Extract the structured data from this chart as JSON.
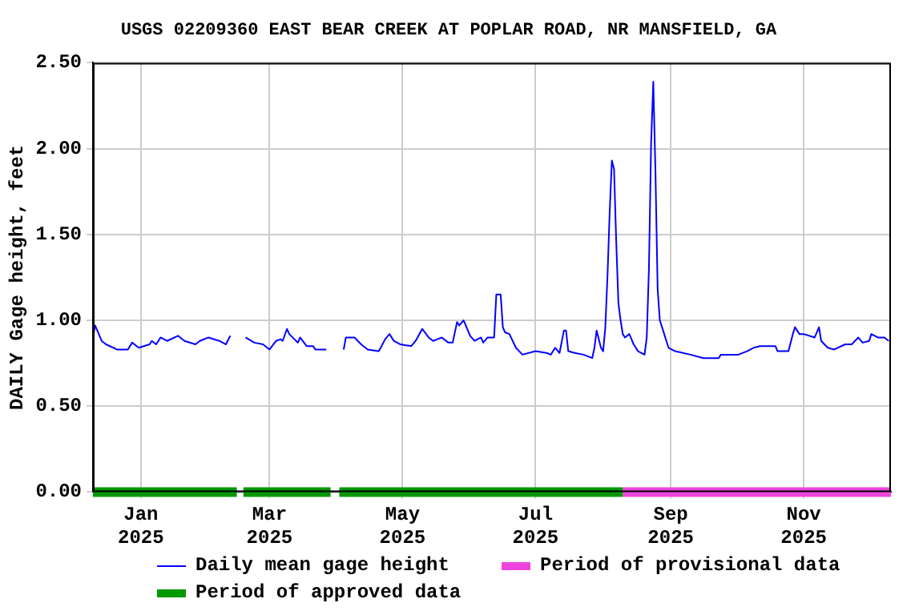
{
  "chart_data": {
    "type": "line",
    "title": "USGS 02209360 EAST BEAR CREEK AT POPLAR ROAD, NR MANSFIELD, GA",
    "ylabel": "DAILY Gage height, feet",
    "x": [
      "2024-12-10",
      "2024-12-11",
      "2024-12-14",
      "2024-12-16",
      "2024-12-21",
      "2024-12-26",
      "2024-12-28",
      "2024-12-31",
      "2025-01-05",
      "2025-01-06",
      "2025-01-08",
      "2025-01-10",
      "2025-01-13",
      "2025-01-18",
      "2025-01-21",
      "2025-01-26",
      "2025-01-28",
      "2025-02-01",
      "2025-02-06",
      "2025-02-09",
      "2025-02-11",
      "2025-02-14",
      "2025-02-18",
      "2025-02-22",
      "2025-02-26",
      "2025-03-01",
      "2025-03-04",
      "2025-03-06",
      "2025-03-07",
      "2025-03-09",
      "2025-03-10",
      "2025-03-14",
      "2025-03-15",
      "2025-03-18",
      "2025-03-21",
      "2025-03-22",
      "2025-03-27",
      "2025-03-31",
      "2025-04-04",
      "2025-04-05",
      "2025-04-09",
      "2025-04-12",
      "2025-04-15",
      "2025-04-20",
      "2025-04-21",
      "2025-04-23",
      "2025-04-25",
      "2025-04-27",
      "2025-04-30",
      "2025-05-05",
      "2025-05-07",
      "2025-05-10",
      "2025-05-13",
      "2025-05-15",
      "2025-05-19",
      "2025-05-22",
      "2025-05-24",
      "2025-05-26",
      "2025-05-27",
      "2025-05-29",
      "2025-06-01",
      "2025-06-03",
      "2025-06-06",
      "2025-06-07",
      "2025-06-09",
      "2025-06-10",
      "2025-06-12",
      "2025-06-13",
      "2025-06-15",
      "2025-06-16",
      "2025-06-17",
      "2025-06-19",
      "2025-06-22",
      "2025-06-25",
      "2025-07-01",
      "2025-07-06",
      "2025-07-08",
      "2025-07-10",
      "2025-07-12",
      "2025-07-14",
      "2025-07-15",
      "2025-07-16",
      "2025-07-19",
      "2025-07-23",
      "2025-07-27",
      "2025-07-28",
      "2025-07-29",
      "2025-07-31",
      "2025-08-01",
      "2025-08-02",
      "2025-08-03",
      "2025-08-04",
      "2025-08-05",
      "2025-08-06",
      "2025-08-07",
      "2025-08-08",
      "2025-08-09",
      "2025-08-10",
      "2025-08-11",
      "2025-08-13",
      "2025-08-15",
      "2025-08-17",
      "2025-08-20",
      "2025-08-21",
      "2025-08-22",
      "2025-08-23",
      "2025-08-24",
      "2025-08-25",
      "2025-08-26",
      "2025-08-27",
      "2025-08-29",
      "2025-08-31",
      "2025-09-03",
      "2025-09-10",
      "2025-09-16",
      "2025-09-23",
      "2025-09-24",
      "2025-09-29",
      "2025-10-02",
      "2025-10-06",
      "2025-10-09",
      "2025-10-12",
      "2025-10-19",
      "2025-10-20",
      "2025-10-25",
      "2025-10-27",
      "2025-10-28",
      "2025-10-30",
      "2025-11-01",
      "2025-11-06",
      "2025-11-08",
      "2025-11-09",
      "2025-11-12",
      "2025-11-15",
      "2025-11-20",
      "2025-11-23",
      "2025-11-26",
      "2025-11-28",
      "2025-12-01",
      "2025-12-02",
      "2025-12-05",
      "2025-12-08",
      "2025-12-10"
    ],
    "series": [
      {
        "name": "Daily mean gage height",
        "color": "#0000ff",
        "values": [
          0.9,
          0.97,
          0.88,
          0.86,
          0.83,
          0.83,
          0.87,
          0.84,
          0.86,
          0.88,
          0.86,
          0.9,
          0.88,
          0.91,
          0.88,
          0.86,
          0.88,
          0.9,
          0.88,
          0.86,
          0.91,
          null,
          0.9,
          0.87,
          0.86,
          0.83,
          0.88,
          0.89,
          0.88,
          0.95,
          0.92,
          0.87,
          0.9,
          0.85,
          0.85,
          0.83,
          0.83,
          null,
          0.83,
          0.9,
          0.9,
          0.86,
          0.83,
          0.82,
          0.84,
          0.89,
          0.92,
          0.88,
          0.86,
          0.85,
          0.88,
          0.95,
          0.9,
          0.88,
          0.9,
          0.87,
          0.87,
          0.99,
          0.97,
          1.0,
          0.91,
          0.88,
          0.9,
          0.87,
          0.9,
          0.9,
          0.9,
          1.15,
          1.15,
          0.96,
          0.93,
          0.92,
          0.84,
          0.8,
          0.82,
          0.81,
          0.8,
          0.84,
          0.81,
          0.94,
          0.94,
          0.82,
          0.81,
          0.8,
          0.78,
          0.84,
          0.94,
          0.84,
          0.82,
          0.96,
          1.26,
          1.63,
          1.93,
          1.88,
          1.46,
          1.1,
          1.0,
          0.92,
          0.9,
          0.92,
          0.86,
          0.82,
          0.8,
          0.9,
          1.3,
          2.03,
          2.39,
          1.86,
          1.18,
          1.0,
          0.92,
          0.84,
          0.82,
          0.8,
          0.78,
          0.78,
          0.8,
          0.8,
          0.8,
          0.82,
          0.84,
          0.85,
          0.85,
          0.82,
          0.82,
          0.92,
          0.96,
          0.92,
          0.92,
          0.9,
          0.96,
          0.88,
          0.84,
          0.83,
          0.86,
          0.86,
          0.9,
          0.87,
          0.88,
          0.92,
          0.9,
          0.9,
          0.88
        ]
      },
      {
        "name": "Period of approved data",
        "color": "#009900",
        "x": [
          "2024-12-10",
          "2025-02-14",
          "2025-02-15",
          "2025-02-17",
          "2025-03-29",
          "2025-03-31",
          "2025-04-02",
          "2025-08-10"
        ],
        "values": [
          0,
          0,
          null,
          0,
          0,
          null,
          0,
          0
        ]
      },
      {
        "name": "Period of provisional data",
        "color": "#ee44dd",
        "x": [
          "2025-08-10",
          "2025-12-11"
        ],
        "values": [
          0,
          0
        ]
      }
    ],
    "xlim": [
      "2024-12-10",
      "2025-12-11"
    ],
    "xticks": [
      {
        "value": "2025-01-01",
        "label": "Jan\n2025"
      },
      {
        "value": "2025-03-01",
        "label": "Mar\n2025"
      },
      {
        "value": "2025-05-01",
        "label": "May\n2025"
      },
      {
        "value": "2025-07-01",
        "label": "Jul\n2025"
      },
      {
        "value": "2025-09-01",
        "label": "Sep\n2025"
      },
      {
        "value": "2025-11-01",
        "label": "Nov\n2025"
      }
    ],
    "ylim": [
      0,
      2.5
    ],
    "yticks": [
      {
        "value": 0,
        "label": "0.00"
      },
      {
        "value": 0.5,
        "label": "0.50"
      },
      {
        "value": 1,
        "label": "1.00"
      },
      {
        "value": 1.5,
        "label": "1.50"
      },
      {
        "value": 2,
        "label": "2.00"
      },
      {
        "value": 2.5,
        "label": "2.50"
      }
    ],
    "grid": true,
    "legend": "bottom",
    "line_style": "solid",
    "marker": "none"
  }
}
